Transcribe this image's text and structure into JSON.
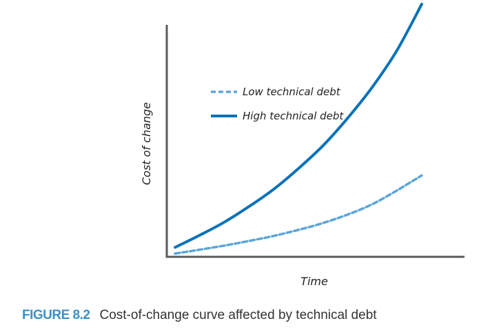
{
  "chart_data": {
    "type": "line",
    "title": "",
    "xlabel": "Time",
    "ylabel": "Cost of change",
    "xlim": [
      0,
      10
    ],
    "ylim": [
      0,
      10
    ],
    "grid": false,
    "legend_position": "top-left",
    "series": [
      {
        "name": "Low technical debt",
        "style": "dashed",
        "color": "#5aa5da",
        "x": [
          0,
          1,
          2,
          3,
          4,
          5,
          6,
          7,
          8,
          9,
          10
        ],
        "y": [
          0.05,
          0.22,
          0.4,
          0.6,
          0.82,
          1.08,
          1.38,
          1.75,
          2.2,
          2.8,
          3.45
        ]
      },
      {
        "name": "High technical debt",
        "style": "solid",
        "color": "#0a72b8",
        "x": [
          0,
          1,
          2,
          3,
          4,
          5,
          6,
          7,
          8,
          9,
          10
        ],
        "y": [
          0.32,
          0.85,
          1.42,
          2.1,
          2.85,
          3.75,
          4.75,
          5.95,
          7.3,
          8.9,
          10.9
        ]
      }
    ]
  },
  "caption": {
    "figure_number": "FIGURE 8.2",
    "text": "Cost-of-change curve affected by technical debt"
  }
}
